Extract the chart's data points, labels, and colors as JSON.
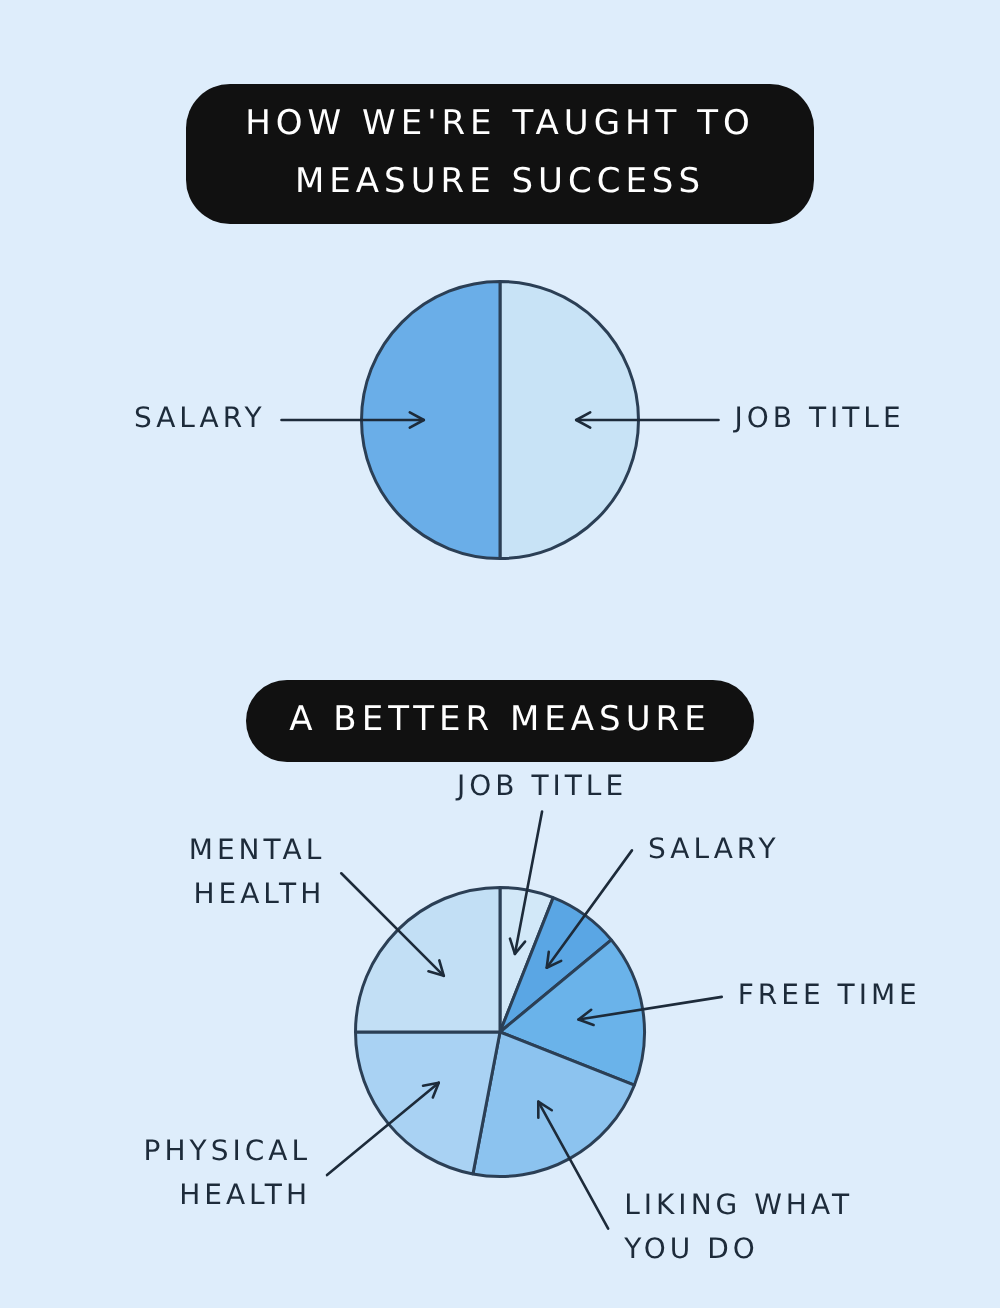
{
  "chart_data": [
    {
      "type": "pie",
      "title": "HOW WE'RE TAUGHT TO MEASURE SUCCESS",
      "categories": [
        "JOB TITLE",
        "SALARY"
      ],
      "values": [
        50,
        50
      ],
      "colors": [
        "#c8e3f6",
        "#6aaee8"
      ]
    },
    {
      "type": "pie",
      "title": "A BETTER MEASURE",
      "categories": [
        "JOB TITLE",
        "SALARY",
        "FREE TIME",
        "LIKING WHAT YOU DO",
        "PHYSICAL HEALTH",
        "MENTAL HEALTH"
      ],
      "values": [
        6,
        8,
        17,
        22,
        22,
        25
      ],
      "colors": [
        "#d2e8f8",
        "#5aa6e4",
        "#6ab3ea",
        "#8cc3ef",
        "#a9d2f3",
        "#c2dff5"
      ]
    }
  ]
}
